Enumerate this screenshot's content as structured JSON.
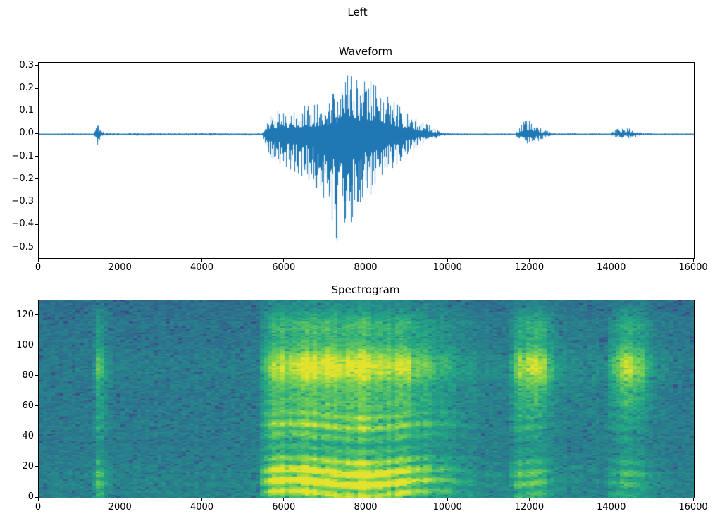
{
  "figure": {
    "title": "Left",
    "background": "#ffffff"
  },
  "chart_data": [
    {
      "type": "line",
      "title": "Waveform",
      "xlabel": "",
      "ylabel": "",
      "line_color": "#1f77b4",
      "xlim": [
        0,
        16000
      ],
      "ylim": [
        -0.545,
        0.315
      ],
      "xticks": [
        [
          0,
          "0"
        ],
        [
          2000,
          "2000"
        ],
        [
          4000,
          "4000"
        ],
        [
          6000,
          "6000"
        ],
        [
          8000,
          "8000"
        ],
        [
          10000,
          "10000"
        ],
        [
          12000,
          "12000"
        ],
        [
          14000,
          "14000"
        ],
        [
          16000,
          "16000"
        ]
      ],
      "yticks": [
        [
          0.3,
          "0.3"
        ],
        [
          0.2,
          "0.2"
        ],
        [
          0.1,
          "0.1"
        ],
        [
          0,
          "0.0"
        ],
        [
          -0.1,
          "−0.1"
        ],
        [
          -0.2,
          "−0.2"
        ],
        [
          -0.3,
          "−0.3"
        ],
        [
          -0.4,
          "−0.4"
        ],
        [
          -0.5,
          "−0.5"
        ]
      ],
      "envelope_points": [
        [
          0,
          0.004,
          -0.004
        ],
        [
          1330,
          0.004,
          -0.004
        ],
        [
          1380,
          0.045,
          -0.04
        ],
        [
          1430,
          0.055,
          -0.05
        ],
        [
          1500,
          0.02,
          -0.018
        ],
        [
          1600,
          0.006,
          -0.006
        ],
        [
          5450,
          0.005,
          -0.005
        ],
        [
          5600,
          0.09,
          -0.1
        ],
        [
          5750,
          0.1,
          -0.11
        ],
        [
          6000,
          0.11,
          -0.14
        ],
        [
          6300,
          0.12,
          -0.17
        ],
        [
          6600,
          0.13,
          -0.2
        ],
        [
          6900,
          0.14,
          -0.26
        ],
        [
          7100,
          0.16,
          -0.33
        ],
        [
          7300,
          0.2,
          -0.48
        ],
        [
          7500,
          0.27,
          -0.52
        ],
        [
          7700,
          0.25,
          -0.42
        ],
        [
          7900,
          0.23,
          -0.32
        ],
        [
          8100,
          0.24,
          -0.27
        ],
        [
          8300,
          0.21,
          -0.23
        ],
        [
          8500,
          0.18,
          -0.18
        ],
        [
          8700,
          0.14,
          -0.14
        ],
        [
          8900,
          0.11,
          -0.11
        ],
        [
          9100,
          0.08,
          -0.07
        ],
        [
          9300,
          0.06,
          -0.05
        ],
        [
          9500,
          0.045,
          -0.035
        ],
        [
          9700,
          0.025,
          -0.02
        ],
        [
          9900,
          0.01,
          -0.008
        ],
        [
          10100,
          0.005,
          -0.005
        ],
        [
          11650,
          0.004,
          -0.004
        ],
        [
          11750,
          0.03,
          -0.025
        ],
        [
          11900,
          0.07,
          -0.055
        ],
        [
          12050,
          0.055,
          -0.045
        ],
        [
          12200,
          0.035,
          -0.03
        ],
        [
          12400,
          0.015,
          -0.012
        ],
        [
          12600,
          0.006,
          -0.005
        ],
        [
          13950,
          0.004,
          -0.004
        ],
        [
          14100,
          0.02,
          -0.015
        ],
        [
          14250,
          0.03,
          -0.022
        ],
        [
          14450,
          0.028,
          -0.02
        ],
        [
          14650,
          0.012,
          -0.01
        ],
        [
          14850,
          0.005,
          -0.004
        ],
        [
          16000,
          0.004,
          -0.004
        ]
      ]
    },
    {
      "type": "heatmap",
      "title": "Spectrogram",
      "xlabel": "",
      "ylabel": "",
      "xlim": [
        0,
        16000
      ],
      "ylim": [
        0,
        130
      ],
      "xticks": [
        [
          0,
          "0"
        ],
        [
          2000,
          "2000"
        ],
        [
          4000,
          "4000"
        ],
        [
          6000,
          "6000"
        ],
        [
          8000,
          "8000"
        ],
        [
          10000,
          "10000"
        ],
        [
          12000,
          "12000"
        ],
        [
          14000,
          "14000"
        ],
        [
          16000,
          "16000"
        ]
      ],
      "yticks": [
        [
          0,
          "0"
        ],
        [
          20,
          "20"
        ],
        [
          40,
          "40"
        ],
        [
          60,
          "60"
        ],
        [
          80,
          "80"
        ],
        [
          100,
          "100"
        ],
        [
          120,
          "120"
        ]
      ],
      "colormap": {
        "name": "viridis",
        "anchors": [
          "#440154",
          "#414487",
          "#2a788e",
          "#22a884",
          "#7ad151",
          "#fde725"
        ]
      },
      "time_envelope": [
        [
          0,
          0.06,
          0.05
        ],
        [
          1280,
          0.08,
          0.07
        ],
        [
          1360,
          0.5,
          0.55
        ],
        [
          1480,
          0.45,
          0.5
        ],
        [
          1560,
          0.15,
          0.2
        ],
        [
          1650,
          0.22,
          0.25
        ],
        [
          1780,
          0.08,
          0.08
        ],
        [
          5350,
          0.08,
          0.08
        ],
        [
          5550,
          0.75,
          0.6
        ],
        [
          5800,
          0.85,
          0.7
        ],
        [
          6200,
          0.9,
          0.8
        ],
        [
          7000,
          0.95,
          0.9
        ],
        [
          8200,
          0.95,
          0.85
        ],
        [
          8900,
          0.8,
          0.75
        ],
        [
          9400,
          0.65,
          0.6
        ],
        [
          9800,
          0.5,
          0.45
        ],
        [
          10300,
          0.3,
          0.3
        ],
        [
          10800,
          0.15,
          0.18
        ],
        [
          11500,
          0.12,
          0.15
        ],
        [
          11750,
          0.45,
          0.7
        ],
        [
          12000,
          0.5,
          0.9
        ],
        [
          12300,
          0.4,
          0.8
        ],
        [
          12600,
          0.2,
          0.4
        ],
        [
          12900,
          0.12,
          0.2
        ],
        [
          13900,
          0.1,
          0.15
        ],
        [
          14100,
          0.3,
          0.6
        ],
        [
          14400,
          0.35,
          0.8
        ],
        [
          14700,
          0.3,
          0.7
        ],
        [
          15000,
          0.15,
          0.3
        ],
        [
          15500,
          0.08,
          0.1
        ],
        [
          16000,
          0.06,
          0.08
        ]
      ],
      "freq_bands": [
        {
          "center": 12,
          "sigma": 16,
          "weight": 1.0,
          "group": "low"
        },
        {
          "center": 47,
          "sigma": 10,
          "weight": 0.6,
          "group": "low"
        },
        {
          "center": 62,
          "sigma": 8,
          "weight": 0.3,
          "group": "high"
        },
        {
          "center": 85,
          "sigma": 15,
          "weight": 0.9,
          "group": "high"
        },
        {
          "center": 112,
          "sigma": 9,
          "weight": 0.35,
          "group": "high"
        }
      ]
    }
  ]
}
